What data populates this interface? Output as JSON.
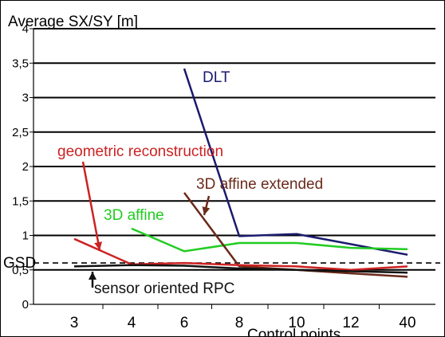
{
  "chart_data": {
    "type": "line",
    "ylabel": "Average SX/SY [m]",
    "xlabel": "Control points",
    "categories": [
      "3",
      "4",
      "6",
      "8",
      "10",
      "12",
      "40"
    ],
    "yticks": [
      "0",
      "0,5",
      "1",
      "1,5",
      "2",
      "2,5",
      "3",
      "3,5",
      "4"
    ],
    "ylim": [
      0,
      4
    ],
    "grid": true,
    "gsd": {
      "label": "GSD",
      "value": 0.6
    },
    "series": [
      {
        "name": "DLT",
        "color": "#1a1a6e",
        "points": [
          [
            6,
            3.42
          ],
          [
            8,
            0.99
          ],
          [
            10,
            1.02
          ],
          [
            40,
            0.72
          ]
        ]
      },
      {
        "name": "3D affine",
        "color": "#22cc22",
        "points": [
          [
            4,
            1.1
          ],
          [
            6,
            0.77
          ],
          [
            8,
            0.89
          ],
          [
            10,
            0.89
          ],
          [
            12,
            0.82
          ],
          [
            40,
            0.8
          ]
        ]
      },
      {
        "name": "3D affine extended",
        "color": "#6b2a1a",
        "points": [
          [
            6,
            1.62
          ],
          [
            8,
            0.55
          ],
          [
            10,
            0.5
          ],
          [
            12,
            0.45
          ],
          [
            40,
            0.4
          ]
        ]
      },
      {
        "name": "geometric reconstruction",
        "color": "#cc2222",
        "points": [
          [
            3,
            0.95
          ],
          [
            4,
            0.58
          ],
          [
            6,
            0.6
          ],
          [
            8,
            0.57
          ],
          [
            10,
            0.55
          ],
          [
            12,
            0.5
          ],
          [
            40,
            0.55
          ]
        ]
      },
      {
        "name": "sensor oriented RPC",
        "color": "#111111",
        "points": [
          [
            3,
            0.55
          ],
          [
            4,
            0.57
          ],
          [
            6,
            0.56
          ],
          [
            8,
            0.52
          ],
          [
            10,
            0.5
          ],
          [
            12,
            0.48
          ],
          [
            40,
            0.46
          ]
        ]
      }
    ]
  }
}
